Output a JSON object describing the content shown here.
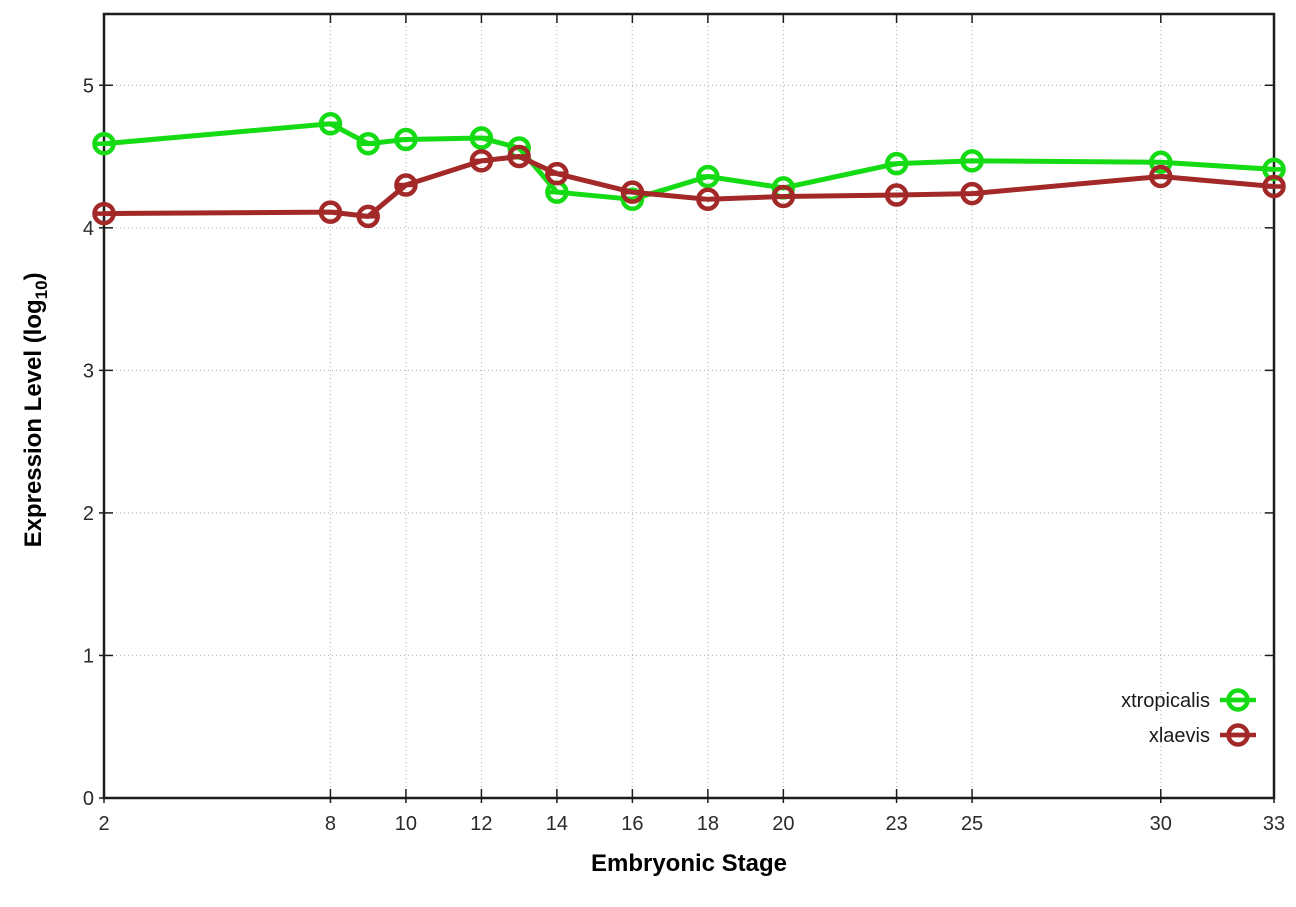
{
  "chart_data": {
    "type": "line",
    "title": "",
    "xlabel": "Embryonic Stage",
    "ylabel": "Expression Level (log10)",
    "ylabel_parts": {
      "prefix": "Expression Level (log",
      "subscript": "10",
      "suffix": ")"
    },
    "x": [
      2,
      8,
      9,
      10,
      12,
      13,
      14,
      16,
      18,
      20,
      23,
      25,
      30,
      33
    ],
    "series": [
      {
        "name": "xtropicalis",
        "color": "#15DB15",
        "values": [
          4.59,
          4.73,
          4.59,
          4.62,
          4.63,
          4.56,
          4.25,
          4.2,
          4.36,
          4.28,
          4.45,
          4.47,
          4.46,
          4.41
        ]
      },
      {
        "name": "xlaevis",
        "color": "#A32929",
        "values": [
          4.1,
          4.11,
          4.08,
          4.3,
          4.47,
          4.5,
          4.38,
          4.25,
          4.2,
          4.22,
          4.23,
          4.24,
          4.36,
          4.29
        ]
      }
    ],
    "xticks": [
      2,
      8,
      10,
      12,
      14,
      16,
      18,
      20,
      23,
      25,
      30,
      33
    ],
    "yticks": [
      0,
      1,
      2,
      3,
      4,
      5
    ],
    "xlim": [
      2,
      33
    ],
    "ylim": [
      0,
      5.5
    ],
    "grid": true,
    "legend_position": "bottom-right",
    "marker": "open-circle-with-horizontal-bar",
    "grid_color": "#bbbbbb",
    "frame_color": "#1c1c1c",
    "tick_label_color": "#2a2a2a"
  }
}
